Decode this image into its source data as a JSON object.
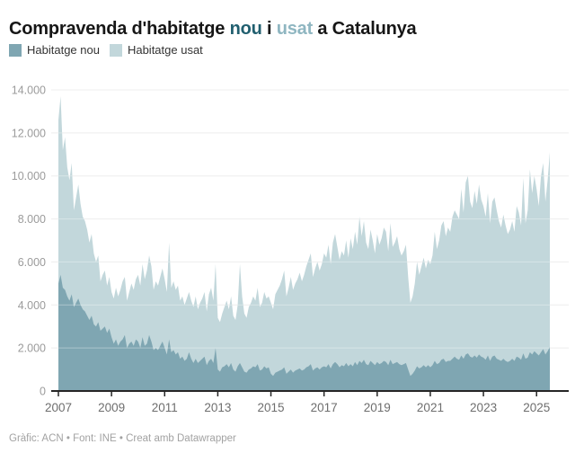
{
  "title": {
    "part1": "Compravenda d'habitatge ",
    "nou": "nou",
    "sep": " i ",
    "usat": "usat",
    "part2": " a Catalunya"
  },
  "legend": {
    "items": [
      {
        "label": "Habitatge nou"
      },
      {
        "label": "Habitatge usat"
      }
    ]
  },
  "footer": {
    "credit": "Gràfic: ACN • Font: INE • ",
    "link": "Creat amb Datawrapper"
  },
  "colors": {
    "nou": "#7fa6b2",
    "usat": "#c2d7db",
    "title_nou": "#215f6f",
    "title_usat": "#8fb6c1",
    "axis_text": "#9b9b9b",
    "x_axis_text": "#6e6e6e",
    "grid": "#e6e6e6",
    "grid_overlay": "rgba(255,255,255,0.35)",
    "axis_line": "#262626"
  },
  "chart_data": {
    "type": "area",
    "stacked": true,
    "title": "Compravenda d'habitatge nou i usat a Catalunya",
    "xlabel": "",
    "ylabel": "",
    "x_start": "2007-01",
    "x_end": "2025-07",
    "x_frequency": "monthly",
    "grid": "horizontal",
    "legend_position": "top-left",
    "ylim": [
      0,
      14000
    ],
    "y_tick_values": [
      0,
      2000,
      4000,
      6000,
      8000,
      10000,
      12000,
      14000
    ],
    "y_tick_labels": [
      "0",
      "2.000",
      "4.000",
      "6.000",
      "8.000",
      "10.000",
      "12.000",
      "14.000"
    ],
    "x_tick_labels": [
      "2007",
      "2009",
      "2011",
      "2013",
      "2015",
      "2017",
      "2019",
      "2021",
      "2023",
      "2025"
    ],
    "series": [
      {
        "name": "Habitatge nou",
        "values": [
          5000,
          5400,
          4800,
          4700,
          4400,
          4200,
          4500,
          3900,
          4100,
          4300,
          4000,
          3800,
          3700,
          3500,
          3300,
          3500,
          3100,
          3000,
          3200,
          2800,
          2900,
          3000,
          2700,
          2900,
          2500,
          2200,
          2400,
          2100,
          2300,
          2400,
          2600,
          2000,
          2200,
          2300,
          2100,
          2400,
          2300,
          2000,
          2500,
          2100,
          2200,
          2600,
          2300,
          1900,
          2000,
          1900,
          2100,
          2300,
          2000,
          1700,
          2400,
          1800,
          1900,
          1700,
          1800,
          1500,
          1600,
          1400,
          1500,
          1800,
          1500,
          1300,
          1500,
          1300,
          1400,
          1500,
          1600,
          1200,
          1400,
          1500,
          1300,
          2000,
          1000,
          900,
          1100,
          1150,
          1250,
          1100,
          1300,
          1000,
          900,
          1150,
          1300,
          1100,
          900,
          850,
          1000,
          1050,
          1150,
          1100,
          1250,
          950,
          1000,
          1150,
          1050,
          1100,
          800,
          700,
          850,
          900,
          950,
          1000,
          1100,
          800,
          900,
          1000,
          850,
          950,
          1000,
          1050,
          950,
          1000,
          1100,
          1150,
          1250,
          950,
          1050,
          1100,
          1000,
          1100,
          1150,
          1100,
          1250,
          1050,
          1250,
          1350,
          1250,
          1100,
          1200,
          1150,
          1300,
          1150,
          1250,
          1150,
          1350,
          1200,
          1400,
          1300,
          1450,
          1250,
          1200,
          1400,
          1300,
          1200,
          1350,
          1250,
          1300,
          1400,
          1350,
          1200,
          1450,
          1250,
          1300,
          1350,
          1250,
          1200,
          1250,
          1300,
          1000,
          700,
          800,
          950,
          1150,
          1050,
          1100,
          1200,
          1100,
          1200,
          1100,
          1200,
          1400,
          1250,
          1300,
          1450,
          1500,
          1350,
          1400,
          1400,
          1500,
          1600,
          1500,
          1450,
          1650,
          1500,
          1700,
          1750,
          1600,
          1550,
          1650,
          1550,
          1700,
          1600,
          1550,
          1450,
          1650,
          1400,
          1600,
          1650,
          1500,
          1450,
          1400,
          1500,
          1400,
          1350,
          1400,
          1500,
          1400,
          1600,
          1550,
          1450,
          1750,
          1500,
          1550,
          1800,
          1700,
          1850,
          1750,
          1650,
          1800,
          1950,
          1700,
          1850,
          2050
        ]
      },
      {
        "name": "Habitatge usat",
        "values": [
          7600,
          8300,
          6400,
          7100,
          6000,
          5600,
          6100,
          4500,
          4900,
          5300,
          4700,
          4300,
          4200,
          4000,
          3600,
          3800,
          3300,
          3000,
          3100,
          2300,
          2500,
          2600,
          2200,
          2400,
          2100,
          2100,
          2400,
          2300,
          2400,
          2700,
          2700,
          2200,
          2400,
          2700,
          2600,
          2800,
          3100,
          2900,
          3400,
          3100,
          3400,
          3700,
          3500,
          2800,
          3100,
          3000,
          3200,
          3400,
          3200,
          2900,
          4500,
          3000,
          3200,
          3000,
          3100,
          2700,
          2800,
          2600,
          2800,
          2800,
          2700,
          2600,
          2900,
          2500,
          2700,
          2800,
          3000,
          2500,
          3100,
          3300,
          2900,
          3900,
          2400,
          2300,
          2500,
          2750,
          2950,
          2700,
          3100,
          2500,
          2400,
          2850,
          4600,
          3300,
          2700,
          2550,
          2900,
          3050,
          3250,
          3100,
          3550,
          2950,
          3100,
          3450,
          3250,
          3300,
          3300,
          3100,
          3650,
          3800,
          3950,
          4200,
          4500,
          3600,
          3900,
          4300,
          3850,
          4050,
          4200,
          4450,
          4150,
          4400,
          4700,
          4950,
          5150,
          4350,
          4650,
          4900,
          4600,
          4800,
          5250,
          5100,
          5550,
          4850,
          5650,
          5950,
          5450,
          5000,
          5300,
          5150,
          5700,
          5050,
          5850,
          5450,
          6050,
          5600,
          6700,
          5900,
          6450,
          5650,
          5400,
          6100,
          5700,
          5200,
          5950,
          5550,
          5800,
          6200,
          6050,
          5300,
          6350,
          5450,
          5600,
          5850,
          5350,
          5100,
          5250,
          5500,
          4300,
          3400,
          3600,
          4050,
          4850,
          4350,
          4700,
          5000,
          4600,
          4900,
          4800,
          5100,
          6000,
          5350,
          5700,
          6250,
          6400,
          5850,
          6200,
          6000,
          6600,
          6800,
          6700,
          6550,
          7750,
          6800,
          8000,
          8250,
          7200,
          6950,
          7650,
          7150,
          7900,
          7300,
          7050,
          6650,
          7550,
          6400,
          7200,
          7350,
          6900,
          6450,
          6200,
          6700,
          6300,
          5950,
          6100,
          6400,
          6000,
          7000,
          6750,
          6250,
          8150,
          6300,
          6850,
          8500,
          7500,
          8150,
          7650,
          6950,
          8200,
          8650,
          7100,
          7950,
          9050
        ]
      }
    ]
  }
}
